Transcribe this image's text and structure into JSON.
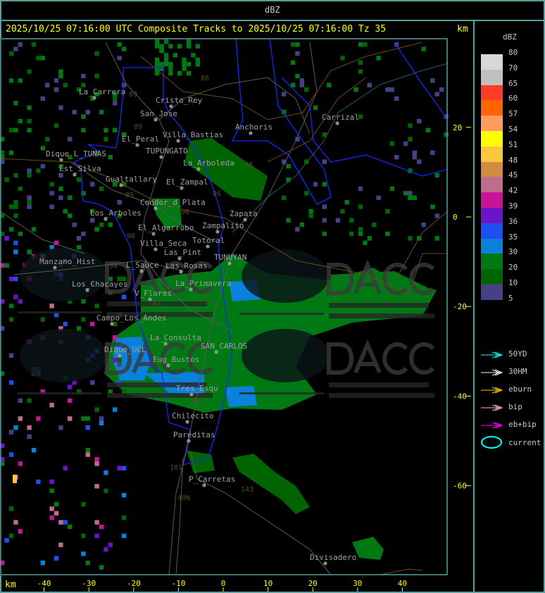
{
  "top_title": "dBZ",
  "header": {
    "text": "2025/10/25 07:16:00 UTC Composite Tracks to 2025/10/25 07:16:00 Tz 35",
    "unit": "km"
  },
  "legend": {
    "title": "dBZ",
    "levels": [
      "80",
      "70",
      "65",
      "60",
      "57",
      "54",
      "51",
      "48",
      "45",
      "42",
      "39",
      "36",
      "35",
      "30",
      "20",
      "10",
      "5"
    ],
    "colors": [
      "#d8d8d8",
      "#c0c0c0",
      "#ff3c28",
      "#ff6400",
      "#ff9b5f",
      "#ffff00",
      "#fac83c",
      "#d28c41",
      "#be6e8c",
      "#c81496",
      "#6e14c8",
      "#1e50f0",
      "#0a82dc",
      "#007814",
      "#006400",
      "#464187"
    ],
    "tracks": [
      {
        "label": "50YD",
        "color": "#00ffff"
      },
      {
        "label": "30HM",
        "color": "#ffffff"
      },
      {
        "label": "eburn",
        "color": "#ffc800"
      },
      {
        "label": "bip",
        "color": "#ffb4c8"
      },
      {
        "label": "eb+bip",
        "color": "#ff00ff"
      }
    ],
    "current": {
      "label": "current",
      "color": "#00ffff"
    }
  },
  "axes": {
    "x_unit": "km",
    "x_ticks": [
      "-40",
      "-30",
      "-20",
      "-10",
      "0",
      "10",
      "20",
      "30",
      "40"
    ],
    "y_ticks": [
      "20",
      "0",
      "-20",
      "-40",
      "-60"
    ]
  },
  "places": [
    "La_Carrera",
    "Cristo_Rey",
    "San_Jose",
    "Villa_Bastias",
    "El_Peral",
    "Anchoris",
    "Carrizal",
    "Dique_L_TUNAS",
    "TUPUNGATO",
    "La_Arboleda",
    "Est_Silva",
    "Gualtallary",
    "El_Zampal",
    "Condor_d_Plata",
    "Zapata",
    "Los_Arboles",
    "El_Algarrobo",
    "Zampalito",
    "Totoral",
    "Villa_Seca",
    "Las_Pint",
    "TUNUYAN",
    "Manzano_Hist",
    "L_Sauce",
    "Las_Rosas",
    "Los_Chacayes",
    "La_Primavera",
    "V_Flores",
    "Campo_Los_Andes",
    "La_Consulta",
    "SAN_CARLOS",
    "Dique_UCL",
    "Eug_Bustos",
    "Tres_Esqu",
    "Chilecito",
    "Pareditas",
    "P_Carretas",
    "Divisadero"
  ],
  "routes": [
    "89",
    "86",
    "89",
    "86",
    "89",
    "96",
    "90",
    "94",
    "40",
    "92",
    "40",
    "40",
    "101",
    "143",
    "40N"
  ],
  "watermark": {
    "logo": "DACC",
    "line1": "Dirección de Agricultura",
    "line2": "y Contingencias Climáticas",
    "url": "http://www.contingencias.mendoza.gov.ar"
  }
}
